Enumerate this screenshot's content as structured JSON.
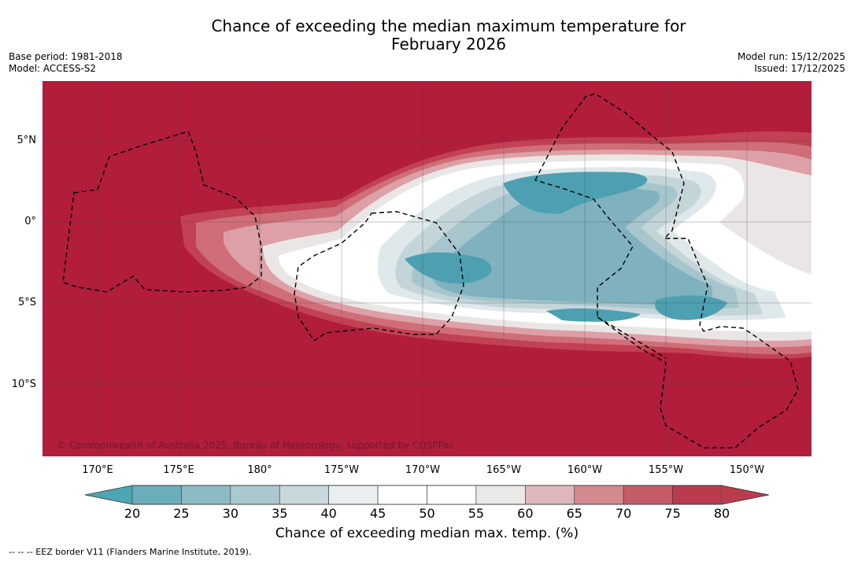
{
  "title_line1": "Chance of exceeding the median maximum temperature for",
  "title_line2": "February 2026",
  "base_period": "Base period: 1981-2018",
  "model": "Model: ACCESS-S2",
  "model_run": "Model run: 15/12/2025",
  "issued": "Issued: 17/12/2025",
  "copyright": "© Commonwealth of Australia 2025, Bureau of Meteorology, supported by COSPPac",
  "lon_labels": [
    "170°E",
    "175°E",
    "180°",
    "175°W",
    "170°W",
    "165°W",
    "160°W",
    "155°W",
    "150°W"
  ],
  "lat_labels": [
    "5°N",
    "0°",
    "5°S",
    "10°S"
  ],
  "colorbar": {
    "ticks": [
      "20",
      "25",
      "30",
      "35",
      "40",
      "45",
      "50",
      "55",
      "60",
      "65",
      "70",
      "75",
      "80"
    ],
    "colors": [
      "#4ea5b3",
      "#6aadbb",
      "#8bbcc6",
      "#a9c9cf",
      "#c8d8dc",
      "#e9eef0",
      "#ffffff",
      "#ffffff",
      "#ebe8e8",
      "#dfb6ba",
      "#d4898f",
      "#c65b68",
      "#b83c4e"
    ],
    "label": "Chance of exceeding median max. temp. (%)"
  },
  "legend_note": "--  --  -- EEZ border V11 (Flanders Marine Institute, 2019).",
  "map_colors": {
    "above": "#b11d3b",
    "c75": "#c24154",
    "c70": "#cf6e78",
    "c65": "#dca0a6",
    "c60": "#ebe6e6",
    "c50": "#ffffff",
    "c40": "#dfe8ea",
    "c35": "#c4d5d9",
    "c30": "#a6c5cc",
    "c25": "#7fb2be",
    "c20": "#4da0b1"
  }
}
